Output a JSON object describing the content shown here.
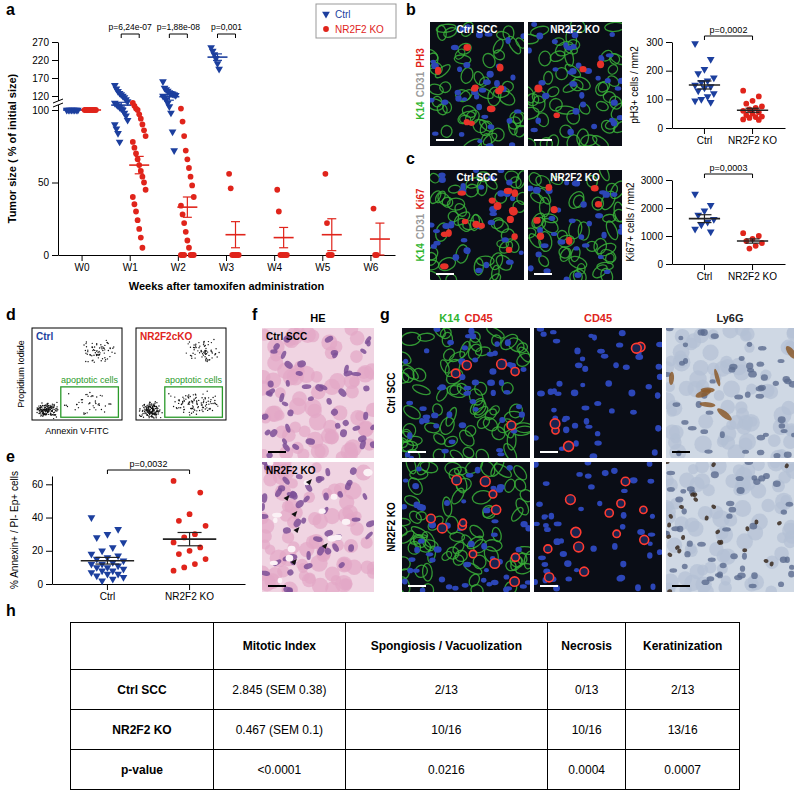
{
  "panels": [
    "a",
    "b",
    "c",
    "d",
    "e",
    "f",
    "g",
    "h"
  ],
  "chart_data": [
    {
      "type": "scatter",
      "x": [
        "W0",
        "W1",
        "W2",
        "W3",
        "W4",
        "W5",
        "W6"
      ],
      "xlabel": "Weeks after tamoxifen administration",
      "ylabel": "Tumor size ( % of initial size)",
      "ylim": [
        0,
        270
      ],
      "yticks": [
        0,
        50,
        100,
        120,
        170,
        220,
        270
      ],
      "legend": "upper right",
      "series": [
        {
          "name": "Ctrl",
          "color": "#1c3f9e",
          "marker": "triangle-down",
          "points": [
            [
              100,
              100,
              100,
              100,
              100,
              100,
              100,
              100
            ],
            [
              150,
              140,
              133,
              128,
              124,
              120,
              118,
              115,
              112,
              110,
              108,
              106,
              104,
              102,
              100,
              98,
              96,
              93,
              90,
              87,
              84,
              78
            ],
            [
              160,
              142,
              138,
              134,
              130,
              128,
              126,
              124,
              122,
              120,
              118,
              115,
              110,
              105,
              98,
              85,
              72
            ],
            [
              255,
              245,
              235,
              225,
              210,
              195
            ],
            [],
            [],
            []
          ],
          "values": [
            100,
            107,
            119,
            228,
            null,
            null,
            null
          ],
          "error": [
            0,
            4,
            5,
            9,
            null,
            null,
            null
          ]
        },
        {
          "name": "NR2F2 KO",
          "color": "#e0241b",
          "marker": "circle",
          "points": [
            [
              100,
              100,
              100,
              100,
              100,
              100,
              100,
              100
            ],
            [
              110,
              106,
              102,
              100,
              97,
              94,
              90,
              86,
              82,
              78,
              74,
              70,
              66,
              62,
              58,
              54,
              50,
              45,
              40,
              35,
              30,
              24,
              18,
              12,
              5
            ],
            [
              102,
              92,
              82,
              72,
              66,
              60,
              54,
              48,
              40,
              34,
              28,
              22,
              16,
              10,
              5,
              0,
              0,
              0,
              0,
              0,
              0
            ],
            [
              56,
              46,
              0,
              0,
              0,
              0,
              0
            ],
            [
              45,
              30,
              0,
              0,
              0,
              0,
              0
            ],
            [
              56,
              22,
              0,
              0,
              0
            ],
            [
              32,
              0,
              0
            ]
          ],
          "values": [
            100,
            62,
            33,
            14,
            12,
            14,
            11
          ],
          "error": [
            0,
            6,
            7,
            9,
            7,
            11,
            11
          ]
        }
      ],
      "annotations": [
        {
          "text": "p=6,24e-07",
          "x": "W1"
        },
        {
          "text": "p=1,88e-08",
          "x": "W2"
        },
        {
          "text": "p=0,001",
          "x": "W3"
        }
      ]
    },
    {
      "type": "scatter",
      "categories": [
        "Ctrl",
        "NR2F2 KO"
      ],
      "colors": [
        "#1c3f9e",
        "#e0241b"
      ],
      "ylabel": "pH3+ cells / mm2",
      "ylim": [
        0,
        300
      ],
      "yticks": [
        0,
        100,
        200,
        300
      ],
      "points": [
        [
          295,
          240,
          205,
          190,
          175,
          165,
          160,
          150,
          145,
          140,
          130,
          120,
          110,
          100,
          95,
          90
        ],
        [
          130,
          110,
          95,
          85,
          75,
          70,
          65,
          60,
          55,
          50,
          45,
          40,
          38,
          35,
          30,
          28
        ]
      ],
      "values": [
        150,
        62
      ],
      "error": [
        14,
        7
      ],
      "annotations": [
        {
          "text": "p=0,0002"
        }
      ]
    },
    {
      "type": "scatter",
      "categories": [
        "Ctrl",
        "NR2F2 KO"
      ],
      "colors": [
        "#1c3f9e",
        "#e0241b"
      ],
      "ylabel": "Ki67+ cells / mm2",
      "ylim": [
        0,
        3000
      ],
      "yticks": [
        0,
        1000,
        2000,
        3000
      ],
      "points": [
        [
          2500,
          2100,
          1900,
          1750,
          1600,
          1500,
          1400,
          1250,
          1150
        ],
        [
          1100,
          1000,
          900,
          820,
          750,
          650,
          550
        ]
      ],
      "values": [
        1620,
        820
      ],
      "error": [
        140,
        75
      ],
      "annotations": [
        {
          "text": "p=0,0003"
        }
      ]
    },
    {
      "type": "scatter",
      "categories": [
        "Ctrl",
        "NR2F2 KO"
      ],
      "colors": [
        "#1c3f9e",
        "#e0241b"
      ],
      "ylabel": "% Annexin+ / PI- Ep+ cells",
      "ylim": [
        0,
        65
      ],
      "yticks": [
        0,
        20,
        40,
        60
      ],
      "points": [
        [
          40,
          33,
          30,
          28,
          25,
          22,
          20,
          18,
          17,
          16,
          15,
          14,
          13,
          12,
          12,
          11,
          10,
          10,
          9,
          8,
          8,
          7,
          6,
          6,
          5,
          4,
          3,
          2
        ],
        [
          62,
          55,
          42,
          38,
          35,
          30,
          28,
          25,
          22,
          20,
          18,
          15,
          12,
          10,
          8
        ]
      ],
      "values": [
        14,
        27
      ],
      "error": [
        2,
        4
      ],
      "annotations": [
        {
          "text": "p=0,0032"
        }
      ]
    }
  ],
  "images": {
    "b": {
      "titles": [
        "Ctrl SCC",
        "NR2F2 KO"
      ],
      "stains": [
        {
          "text": "K14",
          "color": "#2fb52f"
        },
        {
          "text": "CD31",
          "color": "#9a9a9a"
        },
        {
          "text": "PH3",
          "color": "#e0241b"
        }
      ]
    },
    "c": {
      "titles": [
        "Ctrl SCC",
        "NR2F2 KO"
      ],
      "stains": [
        {
          "text": "K14",
          "color": "#2fb52f"
        },
        {
          "text": "CD31",
          "color": "#9a9a9a"
        },
        {
          "text": "Ki67",
          "color": "#e0241b"
        }
      ]
    },
    "d": {
      "plots": [
        {
          "title": "Ctrl",
          "color": "#1c3f9e"
        },
        {
          "title": "NR2F2cKO",
          "color": "#e0241b"
        }
      ],
      "gate": {
        "text": "apoptotic cells",
        "color": "#2a9a2a"
      },
      "xlabel": "Annexin V-FITC",
      "ylabel": "Propidium Iodide"
    },
    "f": {
      "title": "HE",
      "rows": [
        "Ctrl SCC",
        "NR2F2 KO"
      ]
    },
    "g": {
      "columns": [
        [
          {
            "text": "K14",
            "color": "#2fb52f"
          },
          {
            "text": "CD45",
            "color": "#e0241b"
          }
        ],
        [
          {
            "text": "CD45",
            "color": "#e0241b"
          }
        ],
        [
          {
            "text": "Ly6G",
            "color": "#222222"
          }
        ]
      ],
      "rows": [
        "Ctrl SCC",
        "NR2F2 KO"
      ]
    }
  },
  "table": {
    "columns": [
      "Mitotic Index",
      "Spongiosis / Vacuolization",
      "Necrosis",
      "Keratinization"
    ],
    "rows": [
      {
        "label": "Ctrl SCC",
        "cells": [
          "2.845 (SEM 0.38)",
          "2/13",
          "0/13",
          "2/13"
        ]
      },
      {
        "label": "NR2F2 KO",
        "cells": [
          "0.467 (SEM 0.1)",
          "10/16",
          "10/16",
          "13/16"
        ]
      },
      {
        "label": "p-value",
        "cells": [
          "<0.0001",
          "0.0216",
          "0.0004",
          "0.0007"
        ]
      }
    ]
  }
}
